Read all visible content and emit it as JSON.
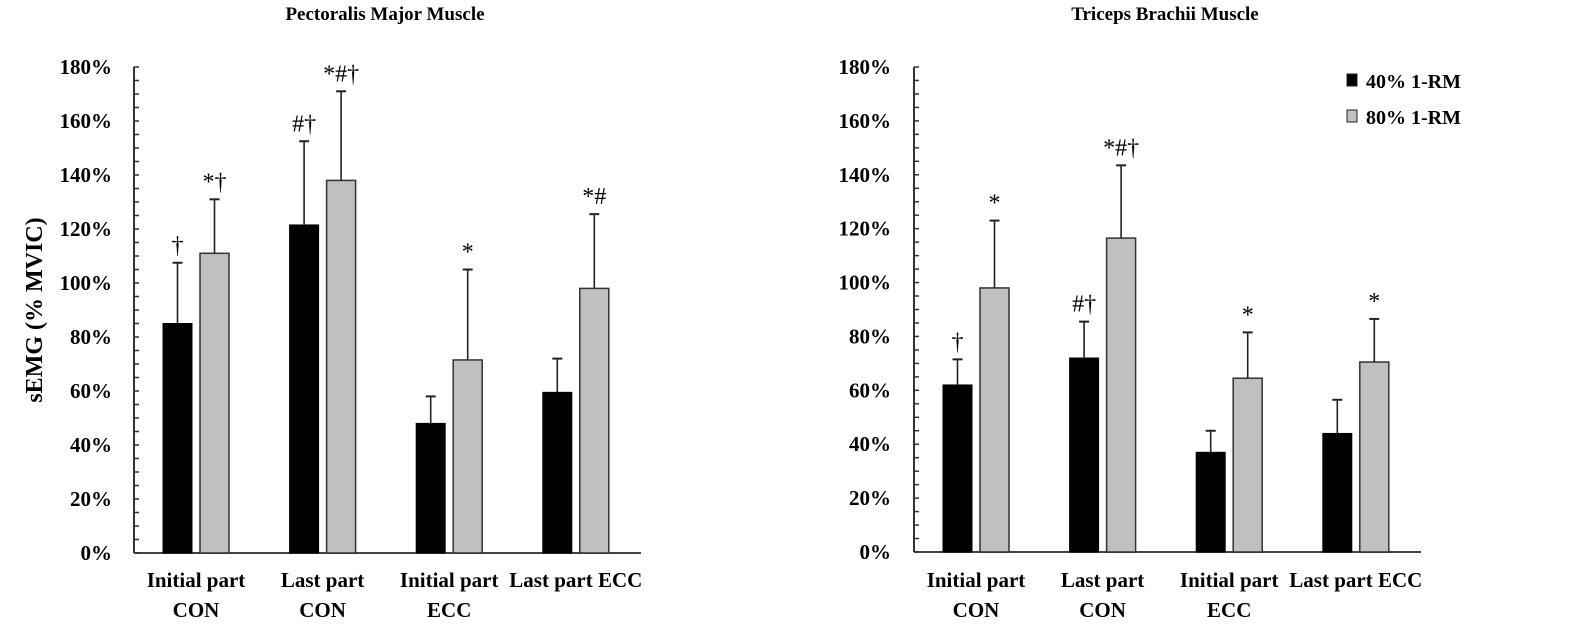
{
  "chart_data": [
    {
      "type": "bar",
      "title": "Pectoralis Major Muscle",
      "ylabel": "sEMG (% MVIC)",
      "xlabel": "",
      "ylim": [
        0,
        180
      ],
      "yticks": [
        "0%",
        "20%",
        "40%",
        "60%",
        "80%",
        "100%",
        "120%",
        "140%",
        "160%",
        "180%"
      ],
      "minor_tick_step": 5,
      "categories": [
        [
          "Initial part",
          "CON"
        ],
        [
          "Last part",
          "CON"
        ],
        [
          "Initial part",
          "ECC"
        ],
        [
          "Last part ECC"
        ]
      ],
      "series": [
        {
          "name": "40% 1-RM",
          "color": "#000000",
          "values": [
            85,
            121.5,
            48,
            59.5
          ],
          "error_upper": [
            107.5,
            152.5,
            58,
            72
          ]
        },
        {
          "name": "80% 1-RM",
          "color": "#c0c0c0",
          "values": [
            111,
            138,
            71.5,
            98
          ],
          "error_upper": [
            131,
            171,
            105,
            125.5
          ]
        }
      ],
      "annotations": [
        {
          "category": 0,
          "series": 0,
          "text": "†"
        },
        {
          "category": 0,
          "series": 1,
          "text": "*†"
        },
        {
          "category": 1,
          "series": 0,
          "text": "#†"
        },
        {
          "category": 1,
          "series": 1,
          "text": "*#†"
        },
        {
          "category": 2,
          "series": 1,
          "text": "*"
        },
        {
          "category": 3,
          "series": 1,
          "text": "*#"
        }
      ],
      "legend": null,
      "grid": false
    },
    {
      "type": "bar",
      "title": "Triceps Brachii Muscle",
      "ylabel": "",
      "xlabel": "",
      "ylim": [
        0,
        180
      ],
      "yticks": [
        "0%",
        "20%",
        "40%",
        "60%",
        "80%",
        "100%",
        "120%",
        "140%",
        "160%",
        "180%"
      ],
      "minor_tick_step": 5,
      "categories": [
        [
          "Initial part",
          "CON"
        ],
        [
          "Last part",
          "CON"
        ],
        [
          "Initial part",
          "ECC"
        ],
        [
          "Last part ECC"
        ]
      ],
      "series": [
        {
          "name": "40% 1-RM",
          "color": "#000000",
          "values": [
            62,
            72,
            37,
            44
          ],
          "error_upper": [
            71.5,
            85.5,
            45,
            56.5
          ]
        },
        {
          "name": "80% 1-RM",
          "color": "#c0c0c0",
          "values": [
            98,
            116.5,
            64.5,
            70.5
          ],
          "error_upper": [
            123,
            143.5,
            81.5,
            86.5
          ]
        }
      ],
      "annotations": [
        {
          "category": 0,
          "series": 0,
          "text": "†"
        },
        {
          "category": 0,
          "series": 1,
          "text": "*"
        },
        {
          "category": 1,
          "series": 0,
          "text": "#†"
        },
        {
          "category": 1,
          "series": 1,
          "text": "*#†"
        },
        {
          "category": 2,
          "series": 1,
          "text": "*"
        },
        {
          "category": 3,
          "series": 1,
          "text": "*"
        }
      ],
      "legend": {
        "position": "top-right",
        "entries": [
          "40% 1-RM",
          "80% 1-RM"
        ]
      },
      "grid": false
    }
  ]
}
